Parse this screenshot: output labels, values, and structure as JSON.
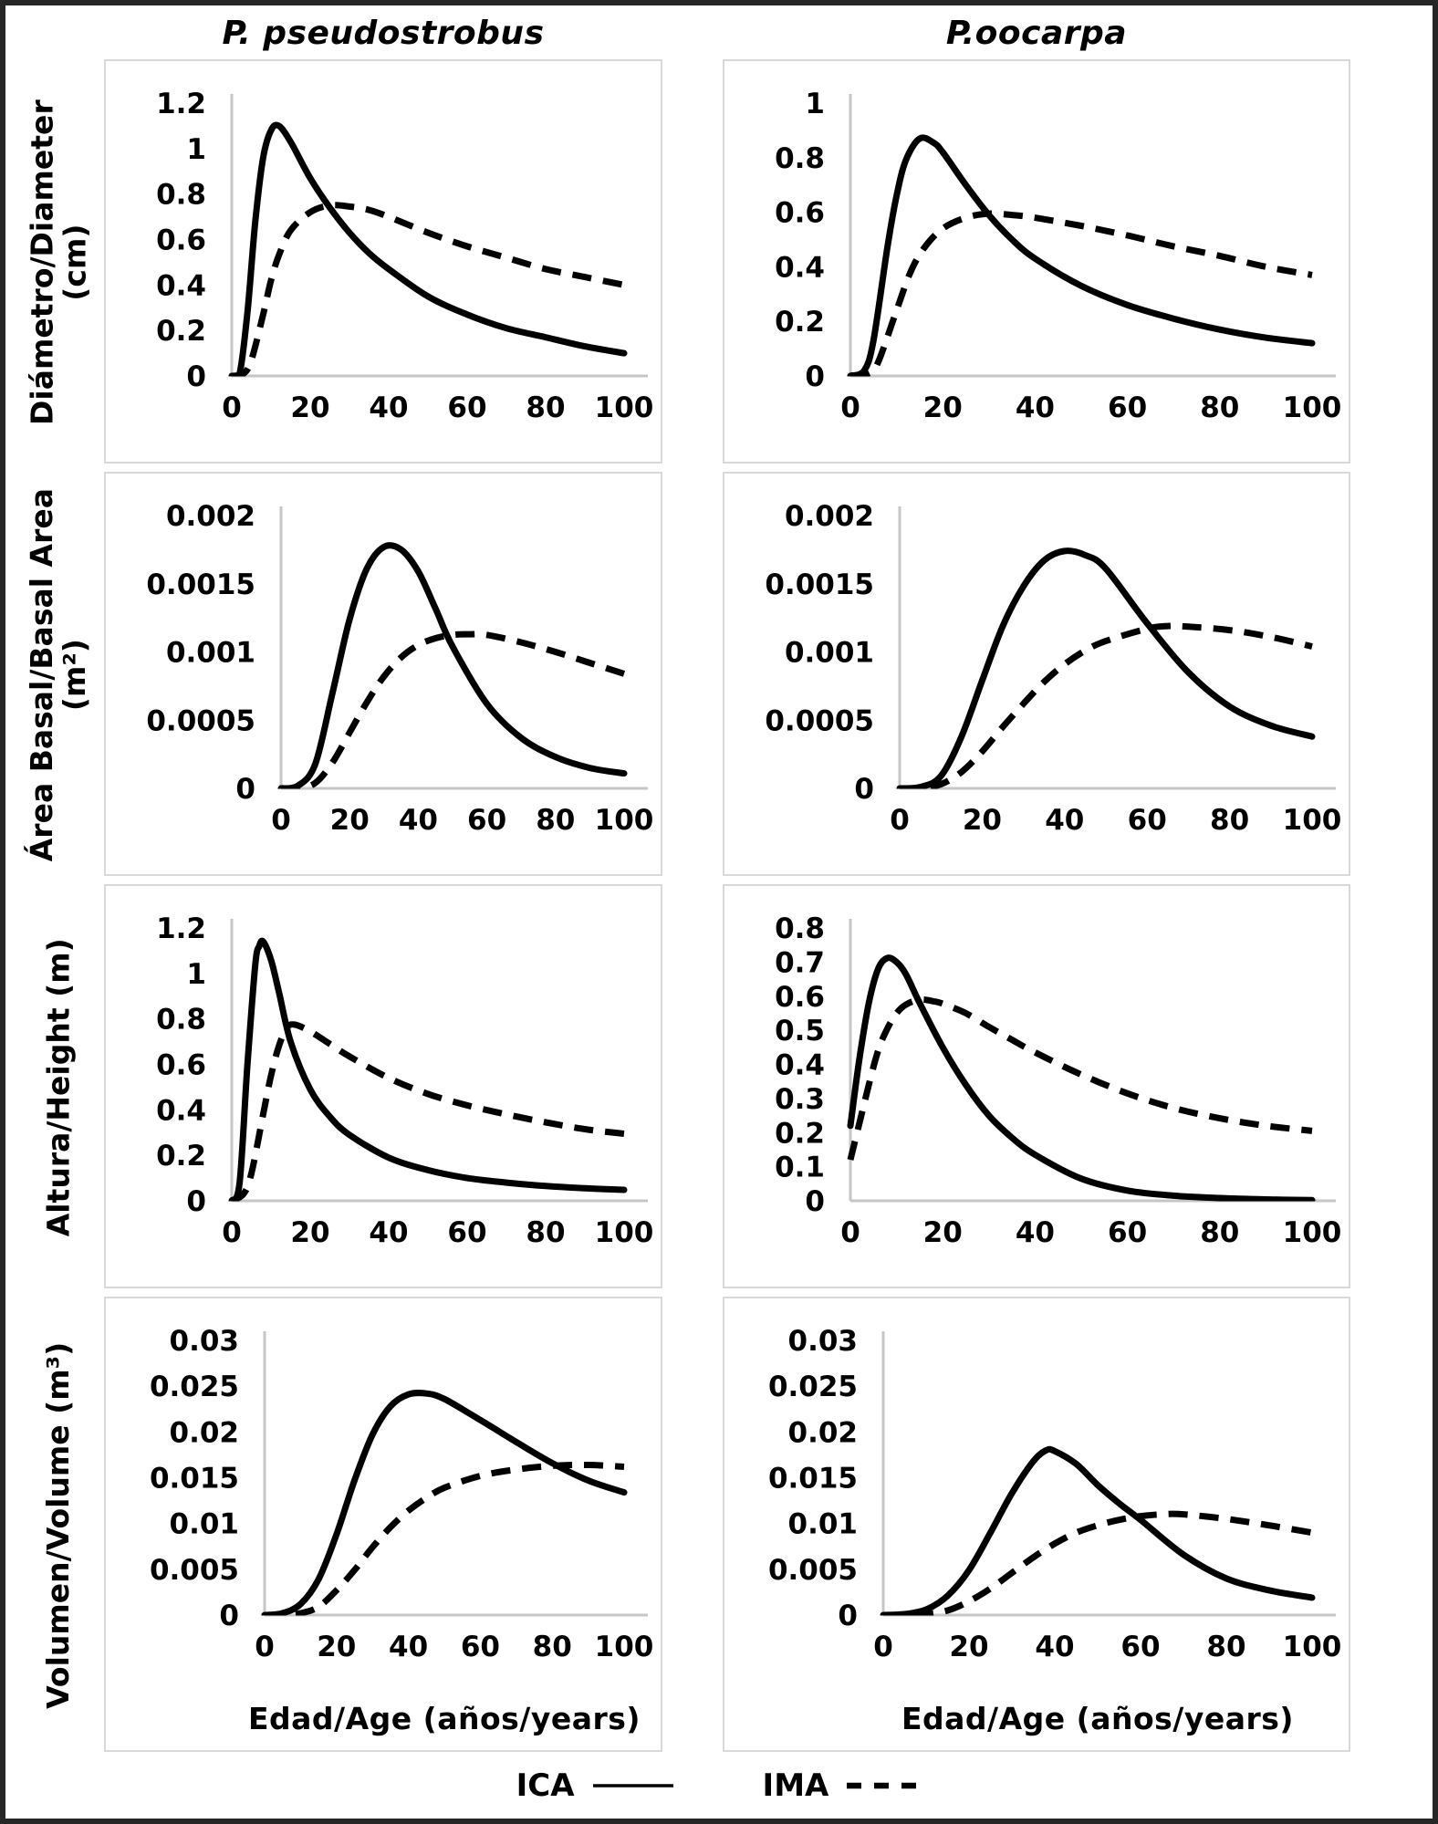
{
  "figure": {
    "column_titles": [
      "P. pseudostrobus",
      "P.oocarpa"
    ],
    "row_labels": [
      {
        "lines": [
          "Diámetro/Diameter",
          "(cm)"
        ]
      },
      {
        "lines": [
          "Área Basal/Basal Area",
          "(m²)"
        ]
      },
      {
        "lines": [
          "Altura/Height (m)"
        ]
      },
      {
        "lines": [
          "Volumen/Volume (m³)"
        ]
      }
    ],
    "x_axis_title": "Edad/Age (años/years)",
    "legend": {
      "ica": "ICA",
      "ima": "IMA"
    },
    "colors": {
      "curve": "#000000",
      "axis_line": "#c6c6c6",
      "panel_border": "#d9d9d9",
      "frame": "#262626",
      "background": "#ffffff"
    }
  },
  "chart_data": [
    {
      "type": "line",
      "species": "P. pseudostrobus",
      "variable": "Diámetro/Diameter (cm)",
      "xlim": [
        0,
        100
      ],
      "xticks": [
        0,
        20,
        40,
        60,
        80,
        100
      ],
      "ylim": [
        0,
        1.2
      ],
      "yticks": [
        "0",
        "0.2",
        "0.4",
        "0.6",
        "0.8",
        "1",
        "1.2"
      ],
      "series": [
        {
          "name": "ICA",
          "style": "solid",
          "x": [
            0,
            2,
            4,
            6,
            8,
            10,
            12,
            15,
            20,
            25,
            30,
            35,
            40,
            50,
            60,
            70,
            80,
            90,
            100
          ],
          "y": [
            0,
            0.01,
            0.28,
            0.68,
            0.96,
            1.08,
            1.1,
            1.03,
            0.87,
            0.74,
            0.63,
            0.54,
            0.47,
            0.35,
            0.27,
            0.21,
            0.17,
            0.13,
            0.1
          ]
        },
        {
          "name": "IMA",
          "style": "dashed",
          "x": [
            0,
            3,
            5,
            8,
            10,
            12,
            15,
            20,
            25,
            30,
            35,
            40,
            50,
            60,
            70,
            80,
            90,
            100
          ],
          "y": [
            0,
            0.01,
            0.07,
            0.27,
            0.42,
            0.53,
            0.64,
            0.72,
            0.75,
            0.745,
            0.73,
            0.7,
            0.63,
            0.57,
            0.52,
            0.47,
            0.435,
            0.4
          ]
        }
      ]
    },
    {
      "type": "line",
      "species": "P.oocarpa",
      "variable": "Diámetro/Diameter (cm)",
      "xlim": [
        0,
        100
      ],
      "xticks": [
        0,
        20,
        40,
        60,
        80,
        100
      ],
      "ylim": [
        0,
        1.0
      ],
      "yticks": [
        "0",
        "0.2",
        "0.4",
        "0.6",
        "0.8",
        "1"
      ],
      "series": [
        {
          "name": "ICA",
          "style": "solid",
          "x": [
            0,
            3,
            5,
            8,
            10,
            12,
            15,
            18,
            20,
            25,
            30,
            35,
            40,
            50,
            60,
            70,
            80,
            90,
            100
          ],
          "y": [
            0,
            0.02,
            0.13,
            0.47,
            0.66,
            0.79,
            0.87,
            0.855,
            0.82,
            0.7,
            0.59,
            0.5,
            0.43,
            0.33,
            0.26,
            0.21,
            0.17,
            0.14,
            0.12
          ]
        },
        {
          "name": "IMA",
          "style": "dashed",
          "x": [
            0,
            4,
            6,
            10,
            13,
            16,
            20,
            25,
            30,
            35,
            40,
            50,
            60,
            70,
            80,
            90,
            100
          ],
          "y": [
            0,
            0.01,
            0.05,
            0.24,
            0.38,
            0.47,
            0.54,
            0.58,
            0.595,
            0.59,
            0.58,
            0.55,
            0.515,
            0.475,
            0.44,
            0.4,
            0.37
          ]
        }
      ]
    },
    {
      "type": "line",
      "species": "P. pseudostrobus",
      "variable": "Área Basal/Basal Area (m²)",
      "xlim": [
        0,
        100
      ],
      "xticks": [
        0,
        20,
        40,
        60,
        80,
        100
      ],
      "ylim": [
        0,
        0.002
      ],
      "yticks": [
        "0",
        "0.0005",
        "0.001",
        "0.0015",
        "0.002"
      ],
      "series": [
        {
          "name": "ICA",
          "style": "solid",
          "x": [
            0,
            5,
            10,
            15,
            20,
            25,
            30,
            35,
            40,
            45,
            50,
            60,
            70,
            80,
            90,
            100
          ],
          "y": [
            0,
            2e-05,
            0.00018,
            0.0007,
            0.00124,
            0.00161,
            0.00177,
            0.00175,
            0.00159,
            0.00132,
            0.00104,
            0.00062,
            0.00037,
            0.00023,
            0.00015,
            0.00011
          ]
        },
        {
          "name": "IMA",
          "style": "dashed",
          "x": [
            0,
            5,
            10,
            15,
            20,
            25,
            30,
            35,
            40,
            45,
            50,
            55,
            60,
            70,
            80,
            90,
            100
          ],
          "y": [
            0,
            0,
            4e-05,
            0.00019,
            0.00041,
            0.00063,
            0.00082,
            0.00096,
            0.00105,
            0.0011,
            0.001125,
            0.00113,
            0.001125,
            0.00107,
            0.001,
            0.00092,
            0.00084
          ]
        }
      ]
    },
    {
      "type": "line",
      "species": "P.oocarpa",
      "variable": "Área Basal/Basal Area (m²)",
      "xlim": [
        0,
        100
      ],
      "xticks": [
        0,
        20,
        40,
        60,
        80,
        100
      ],
      "ylim": [
        0,
        0.002
      ],
      "yticks": [
        "0",
        "0.0005",
        "0.001",
        "0.0015",
        "0.002"
      ],
      "series": [
        {
          "name": "ICA",
          "style": "solid",
          "x": [
            0,
            5,
            10,
            15,
            20,
            25,
            30,
            35,
            40,
            45,
            50,
            60,
            70,
            80,
            90,
            100
          ],
          "y": [
            0,
            1e-05,
            9e-05,
            0.00038,
            0.00079,
            0.00119,
            0.00148,
            0.00167,
            0.00174,
            0.00171,
            0.00161,
            0.00121,
            0.00085,
            0.0006,
            0.00046,
            0.00038
          ]
        },
        {
          "name": "IMA",
          "style": "dashed",
          "x": [
            0,
            5,
            10,
            15,
            20,
            25,
            30,
            35,
            40,
            45,
            50,
            60,
            65,
            70,
            80,
            90,
            100
          ],
          "y": [
            0,
            0,
            3e-05,
            0.00012,
            0.00027,
            0.00045,
            0.00062,
            0.00078,
            0.00091,
            0.00101,
            0.00108,
            0.00117,
            0.00119,
            0.001185,
            0.00116,
            0.00111,
            0.00104
          ]
        }
      ]
    },
    {
      "type": "line",
      "species": "P. pseudostrobus",
      "variable": "Altura/Height (m)",
      "xlim": [
        0,
        100
      ],
      "xticks": [
        0,
        20,
        40,
        60,
        80,
        100
      ],
      "ylim": [
        0,
        1.2
      ],
      "yticks": [
        "0",
        "0.2",
        "0.4",
        "0.6",
        "0.8",
        "1",
        "1.2"
      ],
      "series": [
        {
          "name": "ICA",
          "style": "solid",
          "x": [
            0,
            2,
            4,
            6,
            7,
            8,
            10,
            12,
            15,
            20,
            25,
            30,
            40,
            50,
            60,
            70,
            80,
            90,
            100
          ],
          "y": [
            0,
            0.08,
            0.6,
            1.04,
            1.12,
            1.14,
            1.06,
            0.92,
            0.7,
            0.49,
            0.37,
            0.29,
            0.19,
            0.135,
            0.1,
            0.08,
            0.065,
            0.055,
            0.048
          ]
        },
        {
          "name": "IMA",
          "style": "dashed",
          "x": [
            0,
            3,
            5,
            8,
            10,
            12,
            14,
            16,
            20,
            25,
            30,
            40,
            50,
            60,
            70,
            80,
            90,
            100
          ],
          "y": [
            0,
            0.03,
            0.12,
            0.38,
            0.55,
            0.68,
            0.76,
            0.775,
            0.745,
            0.69,
            0.635,
            0.54,
            0.47,
            0.42,
            0.38,
            0.345,
            0.315,
            0.295
          ]
        }
      ]
    },
    {
      "type": "line",
      "species": "P.oocarpa",
      "variable": "Altura/Height (m)",
      "xlim": [
        0,
        100
      ],
      "xticks": [
        0,
        20,
        40,
        60,
        80,
        100
      ],
      "ylim": [
        0,
        0.8
      ],
      "yticks": [
        "0",
        "0.1",
        "0.2",
        "0.3",
        "0.4",
        "0.5",
        "0.6",
        "0.7",
        "0.8"
      ],
      "series": [
        {
          "name": "ICA",
          "style": "solid",
          "x": [
            0,
            2,
            4,
            6,
            8,
            10,
            12,
            15,
            20,
            25,
            30,
            35,
            40,
            50,
            60,
            70,
            80,
            90,
            100
          ],
          "y": [
            0.22,
            0.42,
            0.58,
            0.68,
            0.712,
            0.7,
            0.665,
            0.58,
            0.45,
            0.34,
            0.25,
            0.185,
            0.135,
            0.065,
            0.03,
            0.015,
            0.008,
            0.004,
            0.002
          ]
        },
        {
          "name": "IMA",
          "style": "dashed",
          "x": [
            0,
            2,
            4,
            6,
            8,
            10,
            12,
            15,
            18,
            20,
            25,
            30,
            35,
            40,
            50,
            60,
            70,
            80,
            90,
            100
          ],
          "y": [
            0.12,
            0.23,
            0.34,
            0.44,
            0.505,
            0.55,
            0.575,
            0.59,
            0.585,
            0.578,
            0.55,
            0.51,
            0.472,
            0.435,
            0.37,
            0.315,
            0.272,
            0.242,
            0.22,
            0.205
          ]
        }
      ]
    },
    {
      "type": "line",
      "species": "P. pseudostrobus",
      "variable": "Volumen/Volume (m³)",
      "xlim": [
        0,
        100
      ],
      "xticks": [
        0,
        20,
        40,
        60,
        80,
        100
      ],
      "ylim": [
        0,
        0.03
      ],
      "yticks": [
        "0",
        "0.005",
        "0.01",
        "0.015",
        "0.02",
        "0.025",
        "0.03"
      ],
      "series": [
        {
          "name": "ICA",
          "style": "solid",
          "x": [
            0,
            5,
            10,
            15,
            20,
            25,
            30,
            35,
            40,
            45,
            50,
            60,
            70,
            80,
            90,
            100
          ],
          "y": [
            0,
            0.0002,
            0.0012,
            0.0039,
            0.0088,
            0.0147,
            0.0197,
            0.0228,
            0.0241,
            0.0242,
            0.0236,
            0.0213,
            0.0189,
            0.0166,
            0.0147,
            0.0134
          ]
        },
        {
          "name": "IMA",
          "style": "dashed",
          "x": [
            0,
            5,
            10,
            15,
            20,
            25,
            30,
            35,
            40,
            45,
            50,
            60,
            70,
            80,
            90,
            100
          ],
          "y": [
            0,
            0,
            0.0002,
            0.0009,
            0.0027,
            0.0049,
            0.0074,
            0.0096,
            0.0114,
            0.0128,
            0.0139,
            0.0152,
            0.0159,
            0.0163,
            0.0164,
            0.0162
          ]
        }
      ]
    },
    {
      "type": "line",
      "species": "P.oocarpa",
      "variable": "Volumen/Volume (m³)",
      "xlim": [
        0,
        100
      ],
      "xticks": [
        0,
        20,
        40,
        60,
        80,
        100
      ],
      "ylim": [
        0,
        0.03
      ],
      "yticks": [
        "0",
        "0.005",
        "0.01",
        "0.015",
        "0.02",
        "0.025",
        "0.03"
      ],
      "series": [
        {
          "name": "ICA",
          "style": "solid",
          "x": [
            0,
            5,
            10,
            15,
            20,
            25,
            30,
            35,
            38,
            40,
            45,
            50,
            55,
            60,
            70,
            80,
            90,
            100
          ],
          "y": [
            0,
            0.0001,
            0.0006,
            0.0021,
            0.0049,
            0.009,
            0.0133,
            0.0168,
            0.018,
            0.0179,
            0.0165,
            0.0142,
            0.0122,
            0.0104,
            0.0066,
            0.004,
            0.0027,
            0.0019
          ]
        },
        {
          "name": "IMA",
          "style": "dashed",
          "x": [
            0,
            5,
            10,
            15,
            20,
            25,
            30,
            35,
            40,
            45,
            50,
            55,
            60,
            65,
            70,
            80,
            90,
            100
          ],
          "y": [
            0,
            0,
            0.0001,
            0.0005,
            0.0015,
            0.0029,
            0.0046,
            0.0063,
            0.0078,
            0.009,
            0.0098,
            0.0104,
            0.0108,
            0.011,
            0.011,
            0.0105,
            0.0098,
            0.009
          ]
        }
      ]
    }
  ]
}
